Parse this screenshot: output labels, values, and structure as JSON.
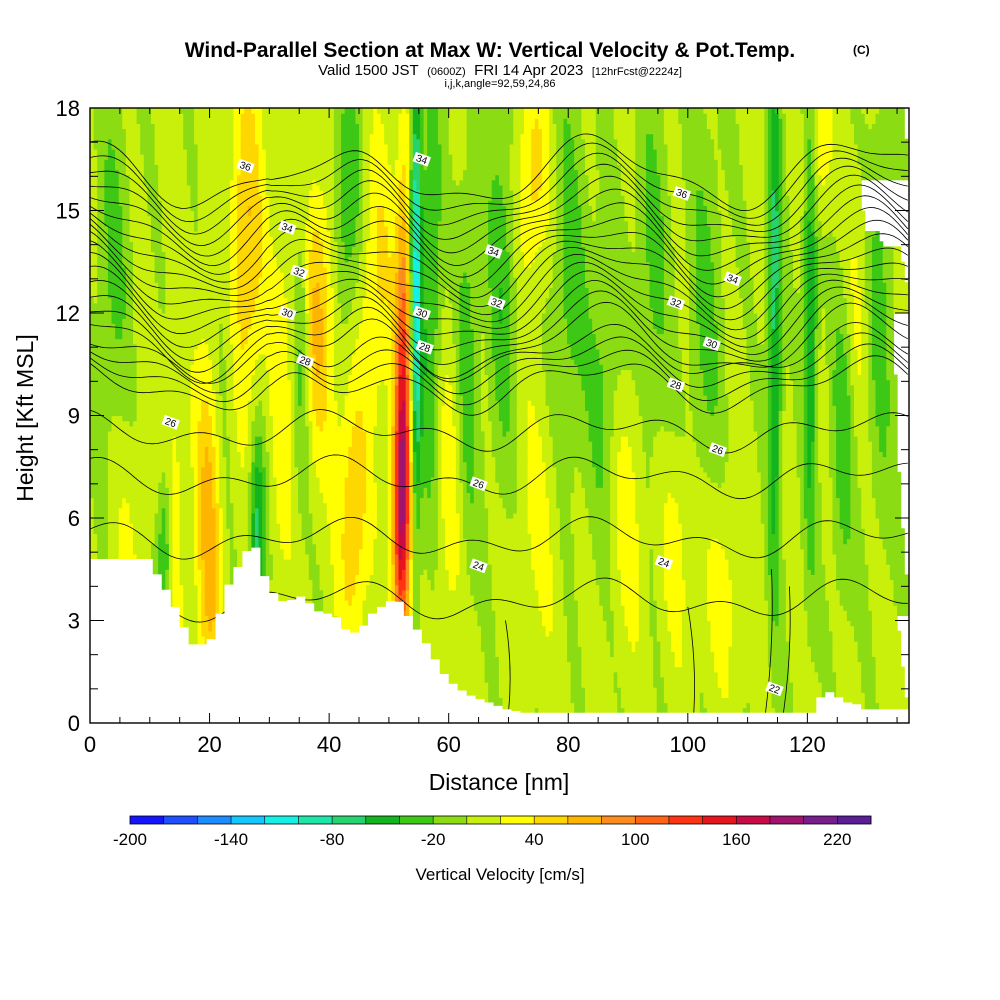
{
  "title": {
    "main": "Wind-Parallel Section at Max W: Vertical Velocity & Pot.Temp.",
    "main_suffix": "(C)",
    "valid_prefix": "Valid 1500 JST",
    "valid_utc": "(0600Z)",
    "valid_date": "FRI 14 Apr 2023",
    "forecast": "[12hrFcst@2224z]",
    "indices": "i,j,k,angle=92,59,24,86"
  },
  "chart_data": {
    "type": "heatmap",
    "xlabel": "Distance [nm]",
    "ylabel": "Height [Kft MSL]",
    "xlim": [
      0,
      137
    ],
    "ylim": [
      0,
      18
    ],
    "x_ticks": [
      0,
      20,
      40,
      60,
      80,
      100,
      120
    ],
    "y_ticks": [
      0,
      3,
      6,
      9,
      12,
      15,
      18
    ],
    "colorbar": {
      "label": "Vertical Velocity [cm/s]",
      "min": -200,
      "max": 240,
      "step": 20,
      "tick_labels": [
        -200,
        -140,
        -80,
        -20,
        40,
        100,
        160,
        220
      ],
      "colors": [
        "#1414ff",
        "#1e50ff",
        "#1e8cff",
        "#14c8ff",
        "#14f0e6",
        "#1ee6aa",
        "#28d26e",
        "#14b41e",
        "#3cc814",
        "#8cdc14",
        "#c8f00a",
        "#ffff00",
        "#ffd700",
        "#ffb400",
        "#ff8c1e",
        "#ff6414",
        "#ff3214",
        "#e6141e",
        "#c80a46",
        "#a0146e",
        "#781e8c",
        "#5a1e96"
      ]
    },
    "background_w": 5,
    "updraft_bands": [
      {
        "x": 6,
        "w": 3,
        "z": 3,
        "h": 7,
        "amp": 20
      },
      {
        "x": 14,
        "w": 1.8,
        "z": 6,
        "h": 5,
        "amp": 30
      },
      {
        "x": 20,
        "w": 2.2,
        "z": 6,
        "h": 6,
        "amp": 70
      },
      {
        "x": 26,
        "w": 3,
        "z": 14,
        "h": 5,
        "amp": 60
      },
      {
        "x": 32,
        "w": 1.8,
        "z": 9.5,
        "h": 6,
        "amp": 25
      },
      {
        "x": 38,
        "w": 3.5,
        "z": 12,
        "h": 4,
        "amp": 60
      },
      {
        "x": 44,
        "w": 2.5,
        "z": 6,
        "h": 4,
        "amp": 55
      },
      {
        "x": 48,
        "w": 3,
        "z": 13,
        "h": 4,
        "amp": 40
      },
      {
        "x": 52,
        "w": 1.4,
        "z": 6,
        "h": 4,
        "amp": 150
      },
      {
        "x": 52.5,
        "w": 1.3,
        "z": 11,
        "h": 6,
        "amp": 90
      },
      {
        "x": 60,
        "w": 3,
        "z": 7,
        "h": 5,
        "amp": 30
      },
      {
        "x": 74,
        "w": 3,
        "z": 16,
        "h": 3,
        "amp": 45
      },
      {
        "x": 75,
        "w": 4,
        "z": 6,
        "h": 4,
        "amp": 20
      },
      {
        "x": 90,
        "w": 3,
        "z": 6.5,
        "h": 4,
        "amp": 30
      },
      {
        "x": 98,
        "w": 2.5,
        "z": 5,
        "h": 3,
        "amp": 25
      },
      {
        "x": 106,
        "w": 4,
        "z": 4,
        "h": 3,
        "amp": 25
      },
      {
        "x": 122,
        "w": 1.8,
        "z": 17,
        "h": 2,
        "amp": 40
      },
      {
        "x": 128,
        "w": 3,
        "z": 12,
        "h": 4,
        "amp": 25
      }
    ],
    "downdraft_bands": [
      {
        "x": 4,
        "w": 3,
        "z": 13,
        "h": 6,
        "amp": -30
      },
      {
        "x": 12.5,
        "w": 1.2,
        "z": 5,
        "h": 2.5,
        "amp": -60
      },
      {
        "x": 22,
        "w": 2.5,
        "z": 11,
        "h": 5,
        "amp": -30
      },
      {
        "x": 28,
        "w": 1.3,
        "z": 5.5,
        "h": 3,
        "amp": -75
      },
      {
        "x": 35.5,
        "w": 1.4,
        "z": 11.5,
        "h": 4,
        "amp": -55
      },
      {
        "x": 43,
        "w": 2.5,
        "z": 15,
        "h": 4,
        "amp": -50
      },
      {
        "x": 54.5,
        "w": 0.9,
        "z": 13,
        "h": 7,
        "amp": -110
      },
      {
        "x": 57,
        "w": 2,
        "z": 12,
        "h": 7,
        "amp": -50
      },
      {
        "x": 63,
        "w": 2,
        "z": 10,
        "h": 6,
        "amp": -40
      },
      {
        "x": 69,
        "w": 2.5,
        "z": 13,
        "h": 6,
        "amp": -40
      },
      {
        "x": 80,
        "w": 3,
        "z": 13,
        "h": 6,
        "amp": -35
      },
      {
        "x": 86,
        "w": 3,
        "z": 10,
        "h": 5,
        "amp": -30
      },
      {
        "x": 94,
        "w": 3,
        "z": 13,
        "h": 6,
        "amp": -30
      },
      {
        "x": 103,
        "w": 3,
        "z": 12,
        "h": 6,
        "amp": -30
      },
      {
        "x": 114.5,
        "w": 1.2,
        "z": 12,
        "h": 8,
        "amp": -75
      },
      {
        "x": 120.5,
        "w": 1.2,
        "z": 12,
        "h": 7,
        "amp": -65
      },
      {
        "x": 126,
        "w": 2,
        "z": 9,
        "h": 5,
        "amp": -45
      },
      {
        "x": 132,
        "w": 2.5,
        "z": 12,
        "h": 6,
        "amp": -35
      }
    ],
    "terrain": [
      [
        0,
        4.8
      ],
      [
        9,
        4.8
      ],
      [
        11,
        4.2
      ],
      [
        13,
        3.6
      ],
      [
        15,
        2.8
      ],
      [
        16,
        2.3
      ],
      [
        19,
        2.3
      ],
      [
        20,
        2.6
      ],
      [
        21,
        3.2
      ],
      [
        22,
        3.8
      ],
      [
        23,
        4.3
      ],
      [
        24.5,
        4.7
      ],
      [
        26,
        5.2
      ],
      [
        27.5,
        5.1
      ],
      [
        28.5,
        4.3
      ],
      [
        29.5,
        3.9
      ],
      [
        31,
        3.6
      ],
      [
        32.5,
        3.5
      ],
      [
        33.5,
        3.7
      ],
      [
        35,
        3.7
      ],
      [
        36.5,
        3.4
      ],
      [
        38,
        3.2
      ],
      [
        40,
        3.2
      ],
      [
        41.5,
        2.9
      ],
      [
        42.5,
        2.6
      ],
      [
        44.5,
        2.7
      ],
      [
        45.5,
        3.0
      ],
      [
        47,
        3.3
      ],
      [
        49,
        3.5
      ],
      [
        50.5,
        3.7
      ],
      [
        51.5,
        3.4
      ],
      [
        53,
        3.0
      ],
      [
        54.5,
        2.6
      ],
      [
        56,
        2.2
      ],
      [
        57.5,
        1.7
      ],
      [
        59,
        1.3
      ],
      [
        61,
        1.0
      ],
      [
        63,
        0.8
      ],
      [
        66,
        0.6
      ],
      [
        69,
        0.4
      ],
      [
        72,
        0.3
      ],
      [
        74,
        0.3
      ],
      [
        118,
        0.3
      ],
      [
        120,
        0.3
      ],
      [
        121,
        0.6
      ],
      [
        122,
        0.9
      ],
      [
        124,
        0.9
      ],
      [
        125,
        0.6
      ],
      [
        127,
        0.6
      ],
      [
        129,
        0.4
      ],
      [
        137,
        0.4
      ]
    ],
    "theta_contours": {
      "units": "C",
      "levels": [
        22,
        24,
        26,
        28,
        30,
        32,
        34,
        36
      ],
      "labels": [
        {
          "x": 13.5,
          "y": 8.8,
          "text": "26"
        },
        {
          "x": 26,
          "y": 16.3,
          "text": "36"
        },
        {
          "x": 33,
          "y": 14.5,
          "text": "34"
        },
        {
          "x": 35,
          "y": 13.2,
          "text": "32"
        },
        {
          "x": 33,
          "y": 12.0,
          "text": "30"
        },
        {
          "x": 36,
          "y": 10.6,
          "text": "28"
        },
        {
          "x": 55.5,
          "y": 16.5,
          "text": "34"
        },
        {
          "x": 55.5,
          "y": 12.0,
          "text": "30"
        },
        {
          "x": 56,
          "y": 11.0,
          "text": "28"
        },
        {
          "x": 65,
          "y": 7.0,
          "text": "26"
        },
        {
          "x": 65,
          "y": 4.6,
          "text": "24"
        },
        {
          "x": 67.5,
          "y": 13.8,
          "text": "34"
        },
        {
          "x": 68,
          "y": 12.3,
          "text": "32"
        },
        {
          "x": 99,
          "y": 15.5,
          "text": "36"
        },
        {
          "x": 98,
          "y": 12.3,
          "text": "32"
        },
        {
          "x": 104,
          "y": 11.1,
          "text": "30"
        },
        {
          "x": 98,
          "y": 9.9,
          "text": "28"
        },
        {
          "x": 105,
          "y": 8.0,
          "text": "26"
        },
        {
          "x": 96,
          "y": 4.7,
          "text": "24"
        },
        {
          "x": 114.5,
          "y": 1.0,
          "text": "22"
        },
        {
          "x": 107.5,
          "y": 13.0,
          "text": "34"
        }
      ]
    }
  }
}
